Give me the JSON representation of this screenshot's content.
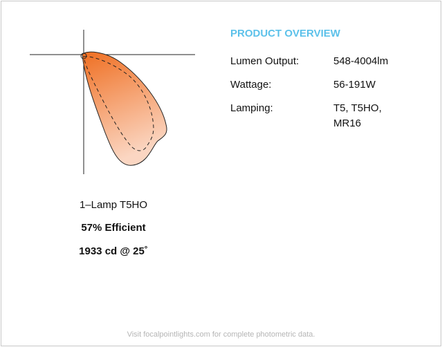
{
  "overview": {
    "title": "PRODUCT OVERVIEW",
    "rows": [
      {
        "label": "Lumen Output:",
        "value": "548-4004lm"
      },
      {
        "label": "Wattage:",
        "value": "56-191W"
      },
      {
        "label": "Lamping:",
        "value": "T5, T5HO, MR16"
      }
    ]
  },
  "photometric": {
    "lamp": "1–Lamp T5HO",
    "efficiency": "57% Efficient",
    "candela": "1933 cd @ 25˚"
  },
  "footer": "Visit focalpointlights.com for complete photometric data."
}
